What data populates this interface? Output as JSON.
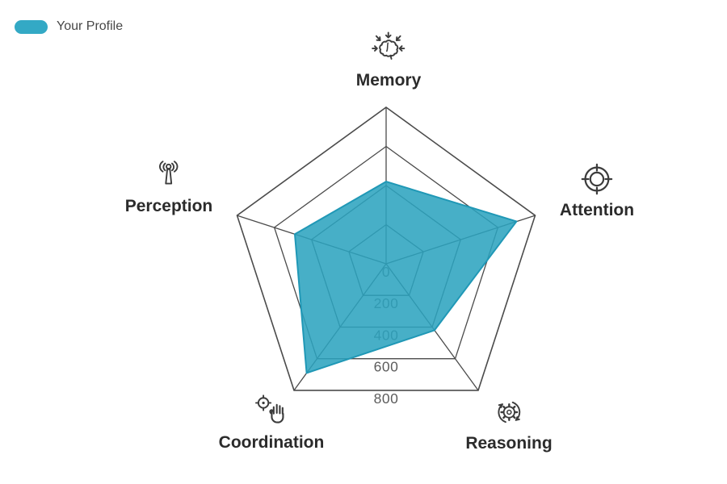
{
  "page": {
    "background": "#ffffff"
  },
  "legend": {
    "label": "Your Profile",
    "swatch_color": "#33A9C5"
  },
  "chart_data": {
    "type": "radar",
    "grid_shape": "pentagon",
    "legend_position": "top-left",
    "axes": [
      {
        "label": "Memory",
        "icon": "brain-arrows-icon"
      },
      {
        "label": "Attention",
        "icon": "target-reticle-icon"
      },
      {
        "label": "Reasoning",
        "icon": "gear-cycle-icon"
      },
      {
        "label": "Coordination",
        "icon": "hand-target-icon"
      },
      {
        "label": "Perception",
        "icon": "antenna-signal-icon"
      }
    ],
    "series": [
      {
        "name": "Your Profile",
        "values": [
          420,
          700,
          420,
          690,
          490
        ],
        "fill_color": "#2CA3BF",
        "fill_opacity": 0.87,
        "stroke_color": "#2098B6"
      }
    ],
    "scale": {
      "min": 0,
      "max": 800,
      "ticks": [
        0,
        200,
        400,
        600,
        800
      ]
    },
    "grid_color": "#4b4b4b",
    "tick_color": "#5c5c5c"
  }
}
